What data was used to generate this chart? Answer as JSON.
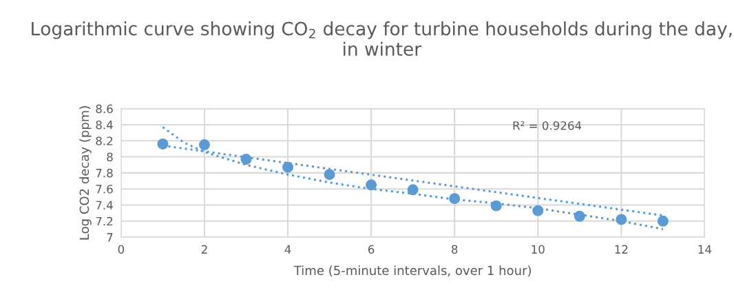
{
  "chart_data": {
    "type": "scatter",
    "title": "Logarithmic curve showing CO$_{2}$ decay for turbine households during the day, in winter",
    "xlabel": "Time (5-minute intervals, over 1 hour)",
    "ylabel": "Log CO2 decay (ppm)",
    "annotations": [
      "R² = 0.9264"
    ],
    "xlim": [
      0,
      14
    ],
    "xticks": [
      0,
      2,
      4,
      6,
      8,
      10,
      12,
      14
    ],
    "ylim": [
      7,
      8.6
    ],
    "yticks": [
      7,
      {
        "value": 7.2,
        "label": "7.2"
      },
      {
        "value": 7.4,
        "label": "7.4"
      },
      {
        "value": 7.6,
        "label": "7.6"
      },
      {
        "value": 7.8,
        "label": "7.8"
      },
      8,
      {
        "value": 8.2,
        "label": "8.2"
      },
      {
        "value": 8.4,
        "label": "8.4"
      },
      {
        "value": 8.6,
        "label": "8.6"
      }
    ],
    "grid": true,
    "legend": false,
    "series": [
      {
        "marker": "circle",
        "color": "#5b9bd5",
        "x": [
          1,
          2,
          3,
          4,
          5,
          6,
          7,
          8,
          9,
          10,
          11,
          12,
          13
        ],
        "values": [
          8.16,
          8.15,
          7.97,
          7.87,
          7.78,
          7.65,
          7.59,
          7.48,
          7.39,
          7.33,
          7.26,
          7.22,
          7.2
        ]
      },
      {
        "type": "line",
        "line_style": "dotted",
        "color": "#5b9bd5",
        "x": [
          1,
          1.5,
          2,
          3,
          4,
          5,
          6,
          7,
          8,
          9,
          10,
          11,
          12,
          13
        ],
        "values": [
          8.37,
          8.18,
          8.06,
          7.9,
          7.78,
          7.68,
          7.6,
          7.54,
          7.47,
          7.42,
          7.36,
          7.28,
          7.2,
          7.1
        ]
      },
      {
        "type": "line",
        "line_style": "dotted",
        "color": "#5b9bd5",
        "x": [
          1,
          13
        ],
        "values": [
          8.14,
          7.27
        ]
      }
    ]
  }
}
